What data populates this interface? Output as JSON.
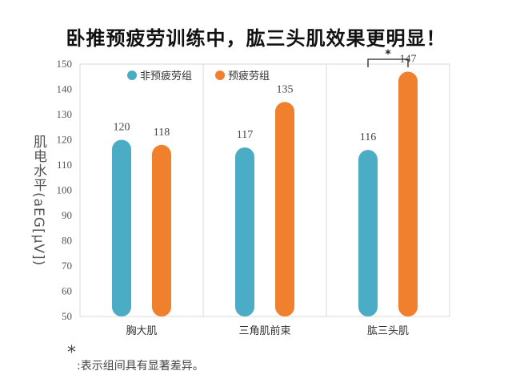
{
  "title": "卧推预疲劳训练中，肱三头肌效果更明显！",
  "chart_data": {
    "type": "bar",
    "title": "卧推预疲劳训练中，肱三头肌效果更明显！",
    "ylabel": "肌电水平(aEG[μV])",
    "xlabel": "",
    "ylim": [
      50,
      150
    ],
    "yticks": [
      50,
      60,
      70,
      80,
      90,
      100,
      110,
      120,
      130,
      140,
      150
    ],
    "categories": [
      "胸大肌",
      "三角肌前束",
      "肱三头肌"
    ],
    "series": [
      {
        "name": "非预疲劳组",
        "values": [
          120,
          117,
          116
        ],
        "color": "#4bacc6"
      },
      {
        "name": "预疲劳组",
        "values": [
          118,
          135,
          147
        ],
        "color": "#f07f2e"
      }
    ],
    "legend_position": "top-left",
    "grid": "vertical-category-dividers",
    "significance": [
      {
        "category": "肱三头肌",
        "marker": "*"
      }
    ]
  },
  "footnote": {
    "star": "*",
    "text": ":表示组间具有显著差异。"
  }
}
